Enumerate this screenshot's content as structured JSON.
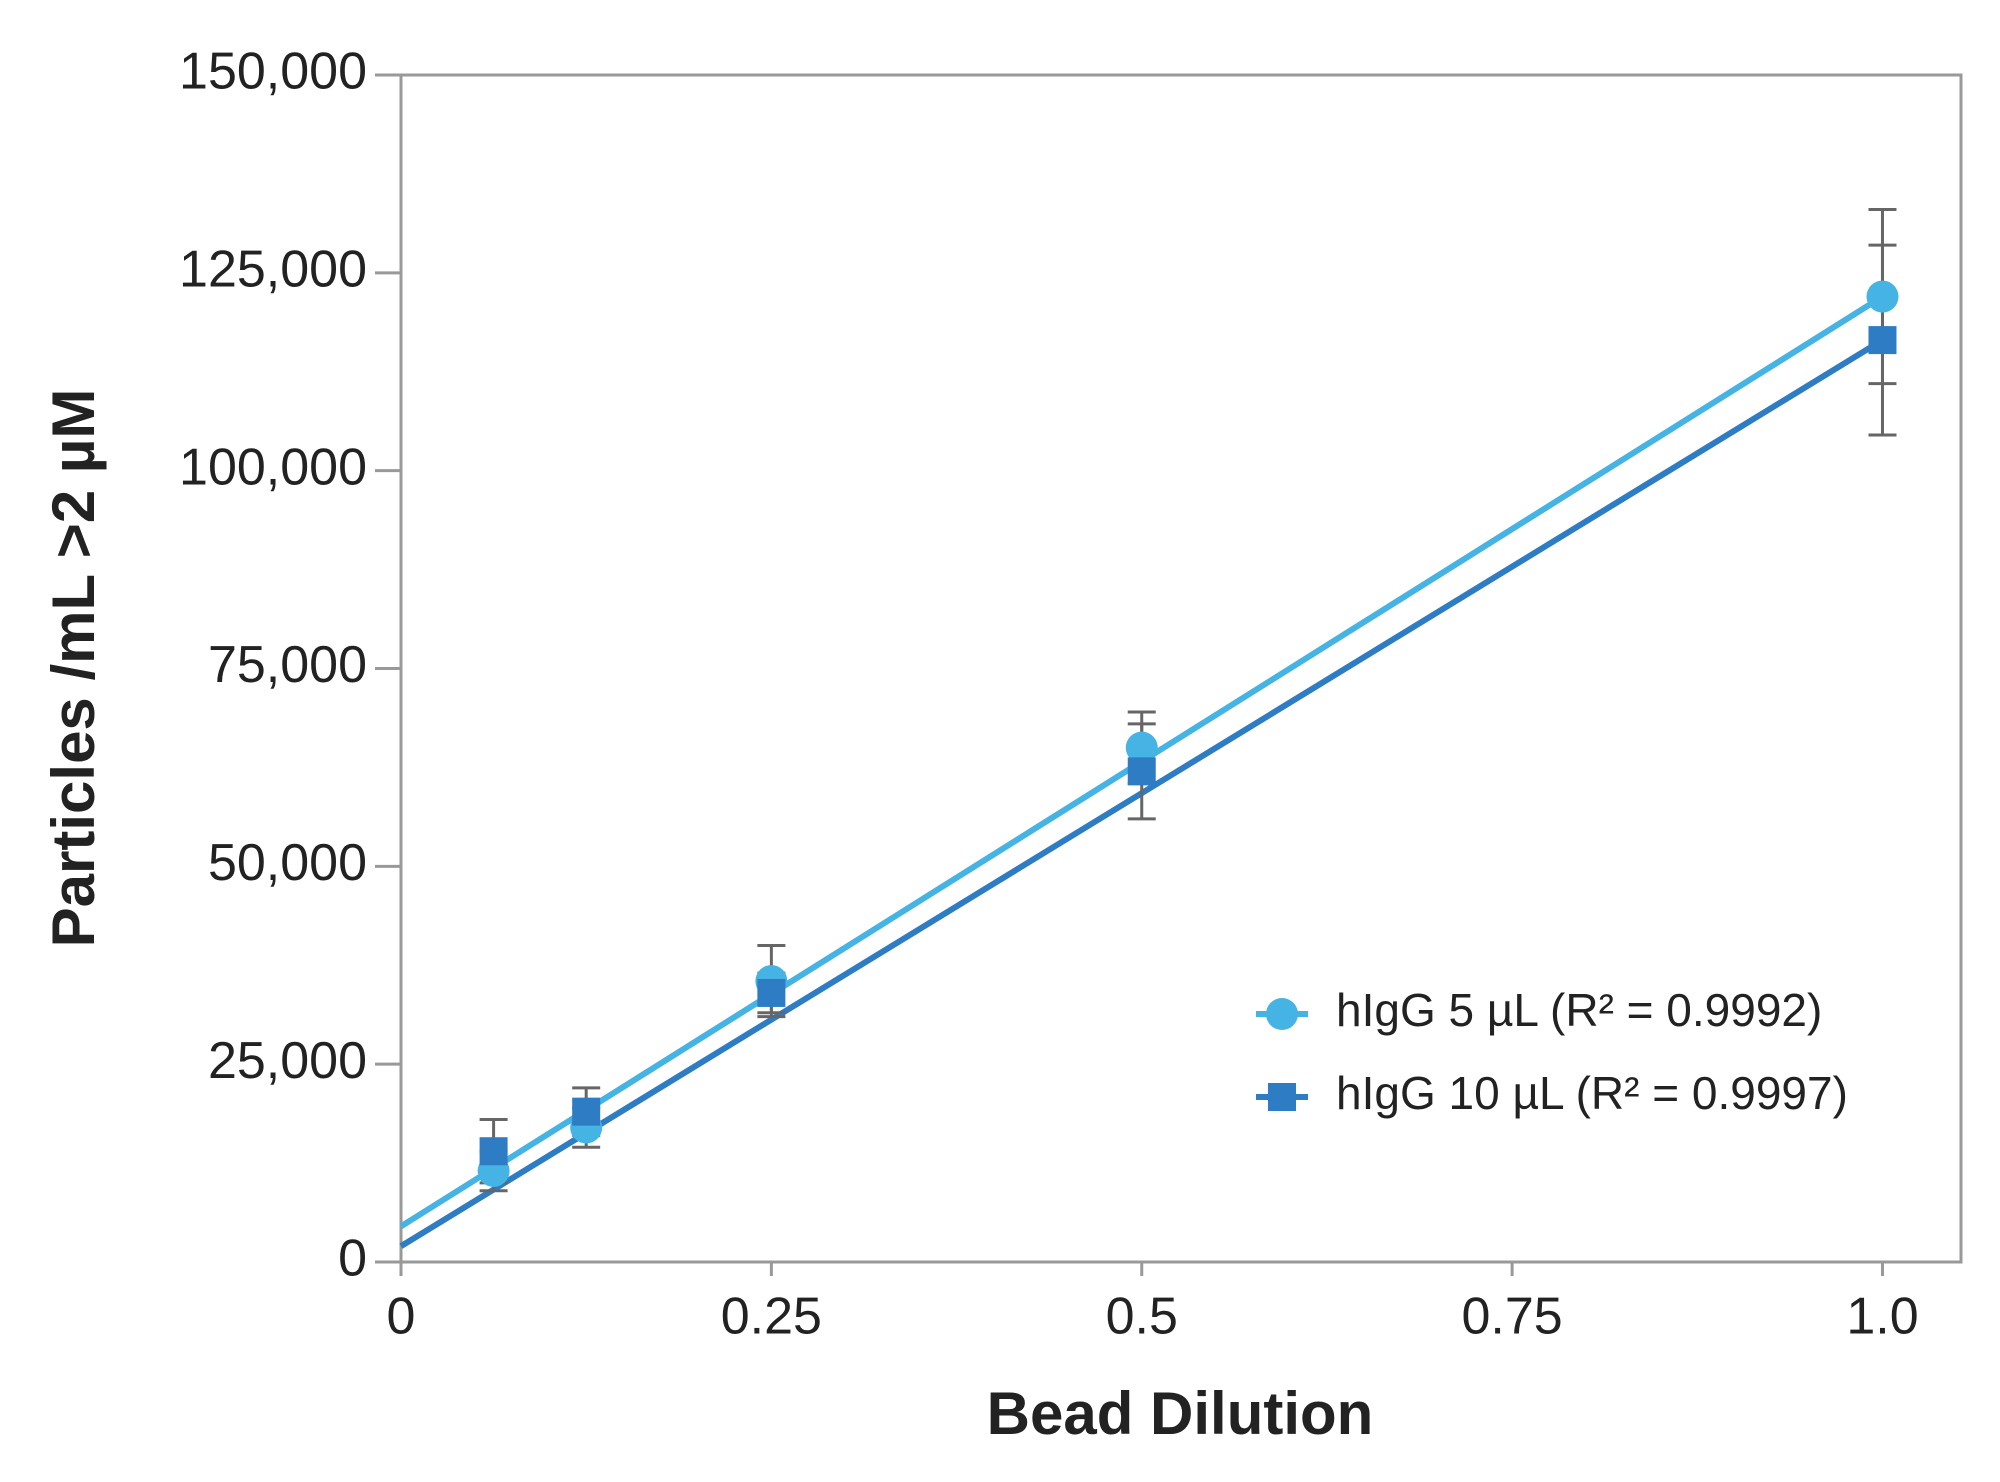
{
  "chart_data": {
    "type": "scatter",
    "xlabel": "Bead Dilution",
    "ylabel": "Particles /mL >2 µM",
    "xlim": [
      0,
      1.053
    ],
    "ylim": [
      0,
      150000
    ],
    "xticks": [
      0,
      0.25,
      0.5,
      0.75,
      {
        "value": 1,
        "label": "1.0"
      }
    ],
    "yticks": [
      0,
      {
        "value": 25000,
        "label": "25,000"
      },
      {
        "value": 50000,
        "label": "50,000"
      },
      {
        "value": 75000,
        "label": "75,000"
      },
      {
        "value": 100000,
        "label": "100,000"
      },
      {
        "value": 125000,
        "label": "125,000"
      },
      {
        "value": 150000,
        "label": "150,000"
      }
    ],
    "grid": false,
    "legend": "lower right",
    "x": [
      0.0625,
      0.125,
      0.25,
      0.5,
      1.0
    ],
    "series": [
      {
        "name": "hIgG 5 µL (R² = 0.9992)",
        "color": "#45b3e3",
        "marker": "circle",
        "values": [
          11500,
          17000,
          35500,
          65000,
          122000
        ],
        "errors": [
          2500,
          2500,
          4500,
          4500,
          11000
        ],
        "trend_x": [
          0,
          1.0
        ],
        "trend": [
          4500,
          122000
        ]
      },
      {
        "name": "hIgG 10 µL (R² = 0.9997)",
        "color": "#2e7dc4",
        "marker": "square",
        "values": [
          14000,
          19000,
          34000,
          62000,
          116500
        ],
        "errors": [
          4000,
          3000,
          2500,
          6000,
          12000
        ],
        "trend_x": [
          0,
          1.0
        ],
        "trend": [
          2000,
          116500
        ]
      }
    ]
  }
}
